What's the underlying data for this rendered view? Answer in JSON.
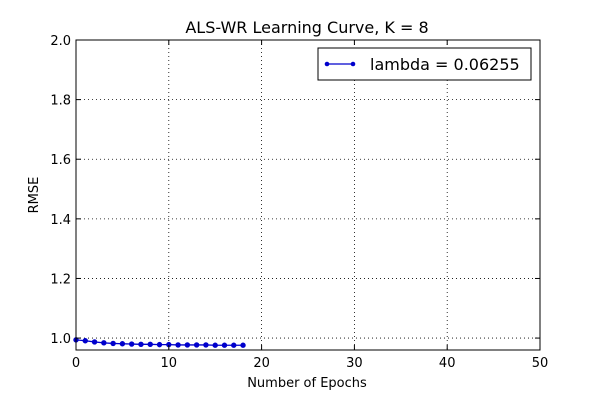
{
  "chart_data": {
    "type": "line",
    "title": "ALS-WR Learning Curve,  K = 8",
    "xlabel": "Number of Epochs",
    "ylabel": "RMSE",
    "xlim": [
      0,
      50
    ],
    "ylim": [
      0.96,
      2.0
    ],
    "xticks": [
      0,
      10,
      20,
      30,
      40,
      50
    ],
    "yticks": [
      1.0,
      1.2,
      1.4,
      1.6,
      1.8,
      2.0
    ],
    "xtick_labels": [
      "0",
      "10",
      "20",
      "30",
      "40",
      "50"
    ],
    "ytick_labels": [
      "1.0",
      "1.2",
      "1.4",
      "1.6",
      "1.8",
      "2.0"
    ],
    "grid": true,
    "legend_position": "top-right",
    "series": [
      {
        "name": "lambda = 0.06255",
        "color": "#0000cc",
        "marker": "dot",
        "x": [
          0,
          1,
          2,
          3,
          4,
          5,
          6,
          7,
          8,
          9,
          10,
          11,
          12,
          13,
          14,
          15,
          16,
          17,
          18
        ],
        "y": [
          0.994,
          0.991,
          0.987,
          0.984,
          0.982,
          0.981,
          0.98,
          0.979,
          0.979,
          0.978,
          0.978,
          0.977,
          0.977,
          0.977,
          0.977,
          0.976,
          0.976,
          0.976,
          0.976
        ]
      }
    ]
  }
}
